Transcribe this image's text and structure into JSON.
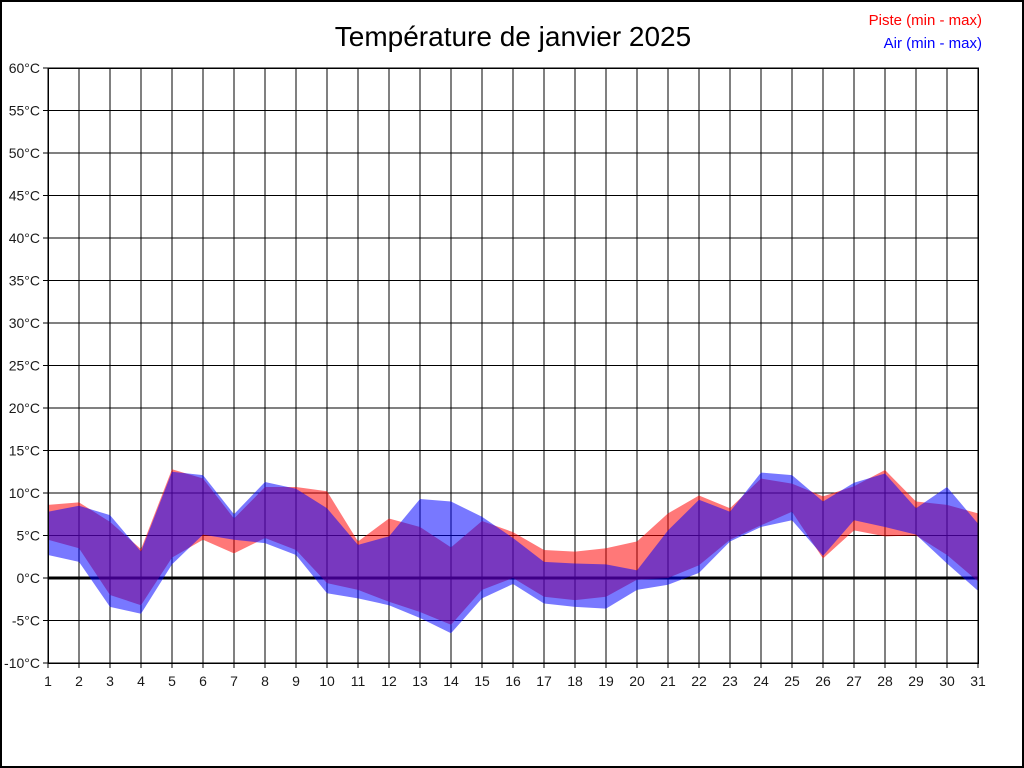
{
  "page": {
    "background": "#ffffff",
    "border_color": "#000000"
  },
  "title": "Température de janvier 2025",
  "legend": {
    "position": "top-right",
    "items": [
      {
        "label": "Piste (min - max)",
        "color": "#ff0000"
      },
      {
        "label": "Air (min - max)",
        "color": "#0000ff"
      }
    ]
  },
  "chart_data": {
    "type": "area",
    "title": "Température de janvier 2025",
    "xlabel": "",
    "ylabel": "",
    "x": [
      1,
      2,
      3,
      4,
      5,
      6,
      7,
      8,
      9,
      10,
      11,
      12,
      13,
      14,
      15,
      16,
      17,
      18,
      19,
      20,
      21,
      22,
      23,
      24,
      25,
      26,
      27,
      28,
      29,
      30,
      31
    ],
    "xtick_labels": [
      "1",
      "2",
      "3",
      "4",
      "5",
      "6",
      "7",
      "8",
      "9",
      "10",
      "11",
      "12",
      "13",
      "14",
      "15",
      "16",
      "17",
      "18",
      "19",
      "20",
      "21",
      "22",
      "23",
      "24",
      "25",
      "26",
      "27",
      "28",
      "29",
      "30",
      "31"
    ],
    "ylim": [
      -10,
      60
    ],
    "ytick_step": 5,
    "ytick_labels": [
      "60°C",
      "55°C",
      "50°C",
      "45°C",
      "40°C",
      "35°C",
      "30°C",
      "25°C",
      "20°C",
      "15°C",
      "10°C",
      "5°C",
      "0°C",
      "-5°C",
      "-10°C"
    ],
    "grid": true,
    "grid_color": "#000000",
    "zero_line_emphasized": true,
    "legend_position": "top-right",
    "series": [
      {
        "name": "Piste (min - max)",
        "band": "min-max",
        "legend_color": "#ff0000",
        "fill": "rgba(255,0,0,0.53)",
        "max": [
          8.6,
          8.9,
          6.6,
          3.4,
          12.8,
          11.7,
          7.0,
          10.7,
          10.7,
          10.2,
          4.3,
          7.0,
          6.0,
          3.6,
          6.7,
          5.4,
          3.3,
          3.1,
          3.5,
          4.3,
          7.6,
          9.7,
          8.2,
          11.7,
          11.1,
          9.6,
          10.8,
          12.7,
          9.0,
          8.6,
          7.6
        ],
        "min": [
          4.5,
          3.5,
          -2.0,
          -3.2,
          2.4,
          4.5,
          2.9,
          4.7,
          3.3,
          -0.6,
          -1.4,
          -2.8,
          -4.0,
          -5.5,
          -1.4,
          0.0,
          -2.2,
          -2.6,
          -2.2,
          -0.2,
          0.0,
          1.5,
          4.5,
          6.2,
          7.8,
          2.3,
          5.6,
          4.9,
          5.0,
          2.7,
          -0.4
        ]
      },
      {
        "name": "Air (min - max)",
        "band": "min-max",
        "legend_color": "#0000ff",
        "fill": "rgba(0,0,255,0.53)",
        "max": [
          7.8,
          8.5,
          7.4,
          3.1,
          12.5,
          12.1,
          7.5,
          11.3,
          10.5,
          8.2,
          3.9,
          4.9,
          9.3,
          9.0,
          7.2,
          4.7,
          1.9,
          1.7,
          1.6,
          0.9,
          5.6,
          9.2,
          7.8,
          12.4,
          12.1,
          9.0,
          11.2,
          12.3,
          8.2,
          10.7,
          6.4
        ],
        "min": [
          2.7,
          1.9,
          -3.4,
          -4.2,
          1.6,
          5.1,
          4.5,
          4.1,
          2.7,
          -1.8,
          -2.4,
          -3.2,
          -4.7,
          -6.5,
          -2.4,
          -0.7,
          -3.0,
          -3.4,
          -3.6,
          -1.4,
          -0.8,
          0.6,
          4.3,
          6.0,
          6.8,
          2.6,
          6.8,
          6.0,
          5.1,
          1.7,
          -1.5
        ]
      }
    ]
  }
}
